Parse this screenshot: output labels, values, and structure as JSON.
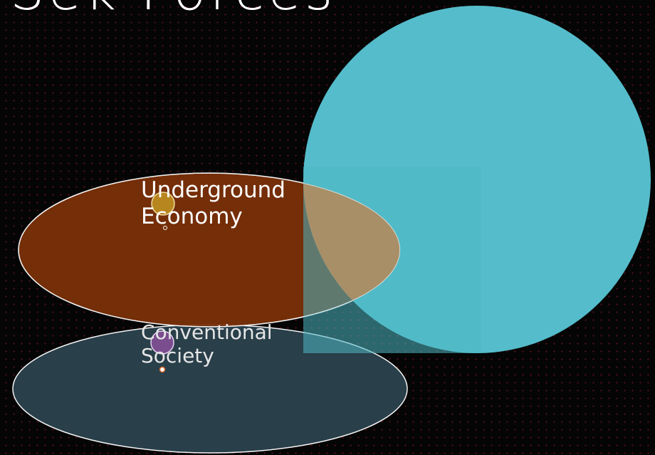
{
  "slide": {
    "title": "Sek Forces"
  },
  "diagram": {
    "sets": [
      {
        "id": "underground",
        "label_line1": "Underground",
        "label_line2": "Economy",
        "fill": "#7a3008",
        "stroke": "#f2f2f2"
      },
      {
        "id": "conventional",
        "label_line1": "Conventional",
        "label_line2": "Society",
        "fill": "#2c4450",
        "stroke": "#f2f2f2"
      },
      {
        "id": "large",
        "fill": "#55bccb"
      }
    ],
    "colors": {
      "overlap": "#a88f68",
      "marker_gold": "#b8861e",
      "marker_purple": "#7a4e8e",
      "background_dots": "#5a1218"
    }
  }
}
